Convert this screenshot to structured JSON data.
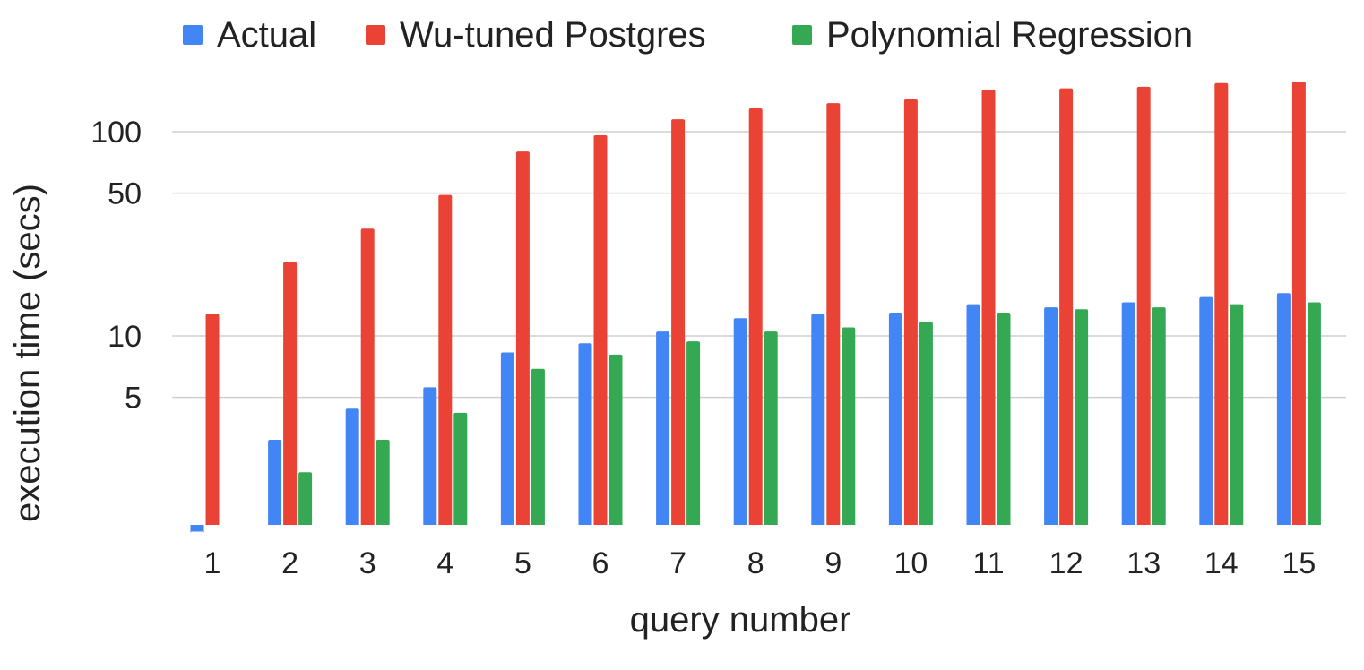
{
  "chart_data": {
    "type": "bar",
    "xlabel": "query number",
    "ylabel": "execution time (secs)",
    "categories": [
      "1",
      "2",
      "3",
      "4",
      "5",
      "6",
      "7",
      "8",
      "9",
      "10",
      "11",
      "12",
      "13",
      "14",
      "15"
    ],
    "y_scale": "log",
    "ylim": [
      1,
      220
    ],
    "y_ticks": [
      5,
      10,
      50,
      100
    ],
    "y_tick_labels": [
      "5",
      "10",
      "50",
      "100"
    ],
    "grid": true,
    "legend_position": "top",
    "series": [
      {
        "name": "Actual",
        "color": "#4285f4",
        "values": [
          1.1,
          3.1,
          4.4,
          5.6,
          8.3,
          9.2,
          10.5,
          12.2,
          12.8,
          13.0,
          14.3,
          13.8,
          14.6,
          15.5,
          16.2
        ]
      },
      {
        "name": "Wu-tuned Postgres",
        "color": "#ea4335",
        "values": [
          12.8,
          23.0,
          33.5,
          49.0,
          80.0,
          96.0,
          115.0,
          130.0,
          138.0,
          144.0,
          160.0,
          163.0,
          166.0,
          173.0,
          176.0
        ]
      },
      {
        "name": "Polynomial Regression",
        "color": "#34a853",
        "values": [
          null,
          2.15,
          3.1,
          4.2,
          6.9,
          8.1,
          9.4,
          10.5,
          11.0,
          11.7,
          13.0,
          13.5,
          13.8,
          14.3,
          14.6
        ]
      }
    ]
  }
}
